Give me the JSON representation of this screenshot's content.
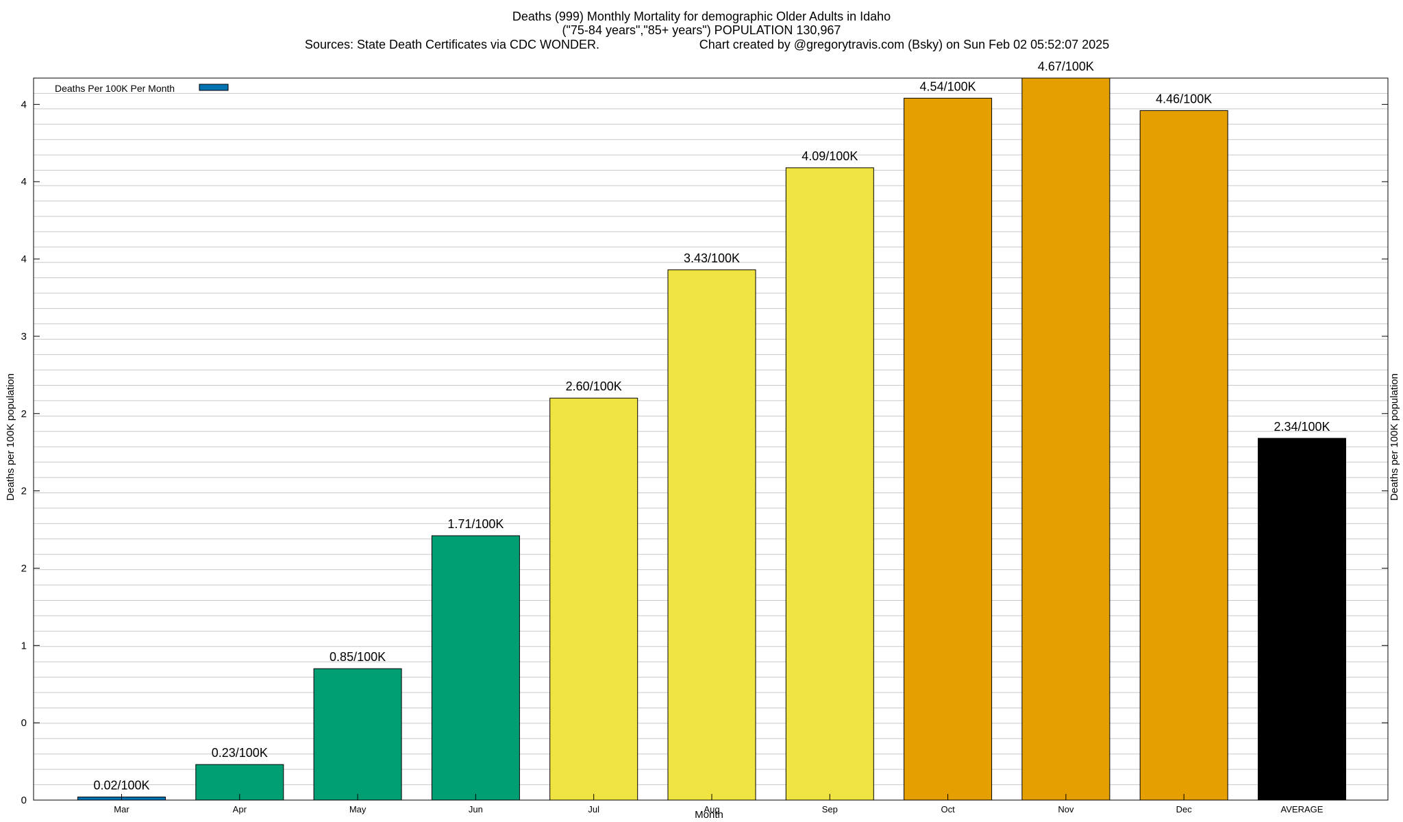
{
  "chart_data": {
    "type": "bar",
    "title": "Deaths (999) Monthly Mortality for demographic Older Adults in Idaho",
    "subtitle": "(\"75-84 years\",\"85+ years\") POPULATION 130,967",
    "source_line": "Sources: State Death Certificates via CDC WONDER.",
    "credit_line": "Chart created by @gregorytravis.com (Bsky) on Sun Feb 02 05:52:07 2025",
    "xlabel": "Month",
    "ylabel": "Deaths per 100K population",
    "ylabel_right": "Deaths per 100K population",
    "ylim": [
      0,
      4.67
    ],
    "y_ticks": [
      0,
      0.5,
      1,
      1.5,
      2,
      2.5,
      3,
      3.5,
      4,
      4.5
    ],
    "y_tick_labels": [
      "0",
      "0",
      "1",
      "2",
      "2",
      "2",
      "3",
      "4",
      "4",
      "4"
    ],
    "grid": true,
    "legend": {
      "position": "top-left",
      "entries": [
        "Deaths Per 100K Per Month"
      ]
    },
    "legend_swatch_color": "#0072b2",
    "categories": [
      "Mar",
      "Apr",
      "May",
      "Jun",
      "Jul",
      "Aug",
      "Sep",
      "Oct",
      "Nov",
      "Dec",
      "AVERAGE"
    ],
    "values": [
      0.02,
      0.23,
      0.85,
      1.71,
      2.6,
      3.43,
      4.09,
      4.54,
      4.67,
      4.46,
      2.34
    ],
    "plotted_values": [
      0.02,
      0.23,
      0.85,
      1.71,
      2.6,
      3.43,
      4.09,
      4.54,
      4.67,
      4.46,
      2.34
    ],
    "data_labels": [
      "0.02/100K",
      "0.23/100K",
      "0.85/100K",
      "1.71/100K",
      "2.60/100K",
      "3.43/100K",
      "4.09/100K",
      "4.54/100K",
      "4.67/100K",
      "4.46/100K",
      "2.34/100K"
    ],
    "bar_colors": [
      "#0072b2",
      "#009e73",
      "#009e73",
      "#009e73",
      "#f0e442",
      "#f0e442",
      "#f0e442",
      "#e69f00",
      "#e69f00",
      "#e69f00",
      "#000000"
    ]
  }
}
